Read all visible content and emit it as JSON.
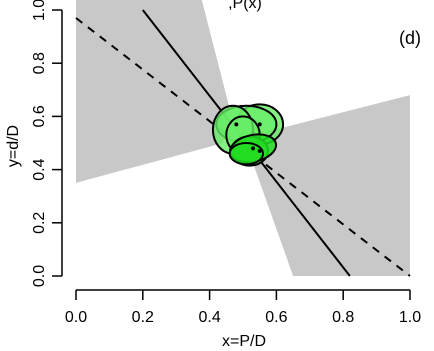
{
  "chart_data": {
    "type": "scatter",
    "title": "",
    "top_label_fragment": ",P(x)",
    "panel_label": "(d)",
    "xlabel": "x=P/D",
    "ylabel": "y=d/D",
    "xlim": [
      0,
      1
    ],
    "ylim": [
      0,
      1
    ],
    "x_ticks": [
      "0.0",
      "0.2",
      "0.4",
      "0.6",
      "0.8",
      "1.0"
    ],
    "y_ticks": [
      "0.0",
      "0.2",
      "0.4",
      "0.6",
      "0.8",
      "1.0"
    ],
    "x_tick_values": [
      0,
      0.2,
      0.4,
      0.6,
      0.8,
      1.0
    ],
    "y_tick_values": [
      0,
      0.2,
      0.4,
      0.6,
      0.8,
      1.0
    ],
    "grid": false,
    "colors": {
      "ellipse_fill": "#22dd22",
      "ellipse_fill_light": "#66ee66",
      "ellipse_stroke": "#000000",
      "band": "#c8c8c8",
      "line": "#000000"
    },
    "bands": [
      {
        "name": "",
        "polygon": [
          [
            0,
            0.35
          ],
          [
            0,
            1.07
          ],
          [
            0.37,
            1.07
          ],
          [
            0.46,
            0.63
          ],
          [
            0.44,
            0.5
          ],
          [
            1.0,
            0.68
          ],
          [
            1.0,
            0.0
          ],
          [
            0.65,
            0.0
          ],
          [
            0.52,
            0.46
          ],
          [
            0.47,
            0.51
          ]
        ]
      }
    ],
    "lines": [
      {
        "style": "solid",
        "points": [
          [
            0.2,
            1.0
          ],
          [
            0.82,
            0.0
          ]
        ]
      },
      {
        "style": "dashed",
        "points": [
          [
            0.0,
            0.97
          ],
          [
            1.0,
            0.0
          ]
        ]
      }
    ],
    "ellipses": [
      {
        "cx": 0.55,
        "cy": 0.57,
        "rx": 0.07,
        "ry": 0.075,
        "rot": 0,
        "tone": "light"
      },
      {
        "cx": 0.51,
        "cy": 0.57,
        "rx": 0.09,
        "ry": 0.07,
        "rot": 0,
        "tone": "light"
      },
      {
        "cx": 0.47,
        "cy": 0.55,
        "rx": 0.06,
        "ry": 0.09,
        "rot": 0,
        "tone": "light"
      },
      {
        "cx": 0.5,
        "cy": 0.53,
        "rx": 0.05,
        "ry": 0.07,
        "rot": 0,
        "tone": "light"
      },
      {
        "cx": 0.52,
        "cy": 0.47,
        "rx": 0.055,
        "ry": 0.055,
        "rot": 0,
        "tone": "dark"
      },
      {
        "cx": 0.53,
        "cy": 0.48,
        "rx": 0.07,
        "ry": 0.05,
        "rot": -12,
        "tone": "dark"
      },
      {
        "cx": 0.51,
        "cy": 0.46,
        "rx": 0.05,
        "ry": 0.04,
        "rot": 0,
        "tone": "dark"
      }
    ],
    "points": [
      {
        "x": 0.48,
        "y": 0.57
      },
      {
        "x": 0.55,
        "y": 0.57
      },
      {
        "x": 0.53,
        "y": 0.48
      },
      {
        "x": 0.55,
        "y": 0.47
      }
    ]
  }
}
